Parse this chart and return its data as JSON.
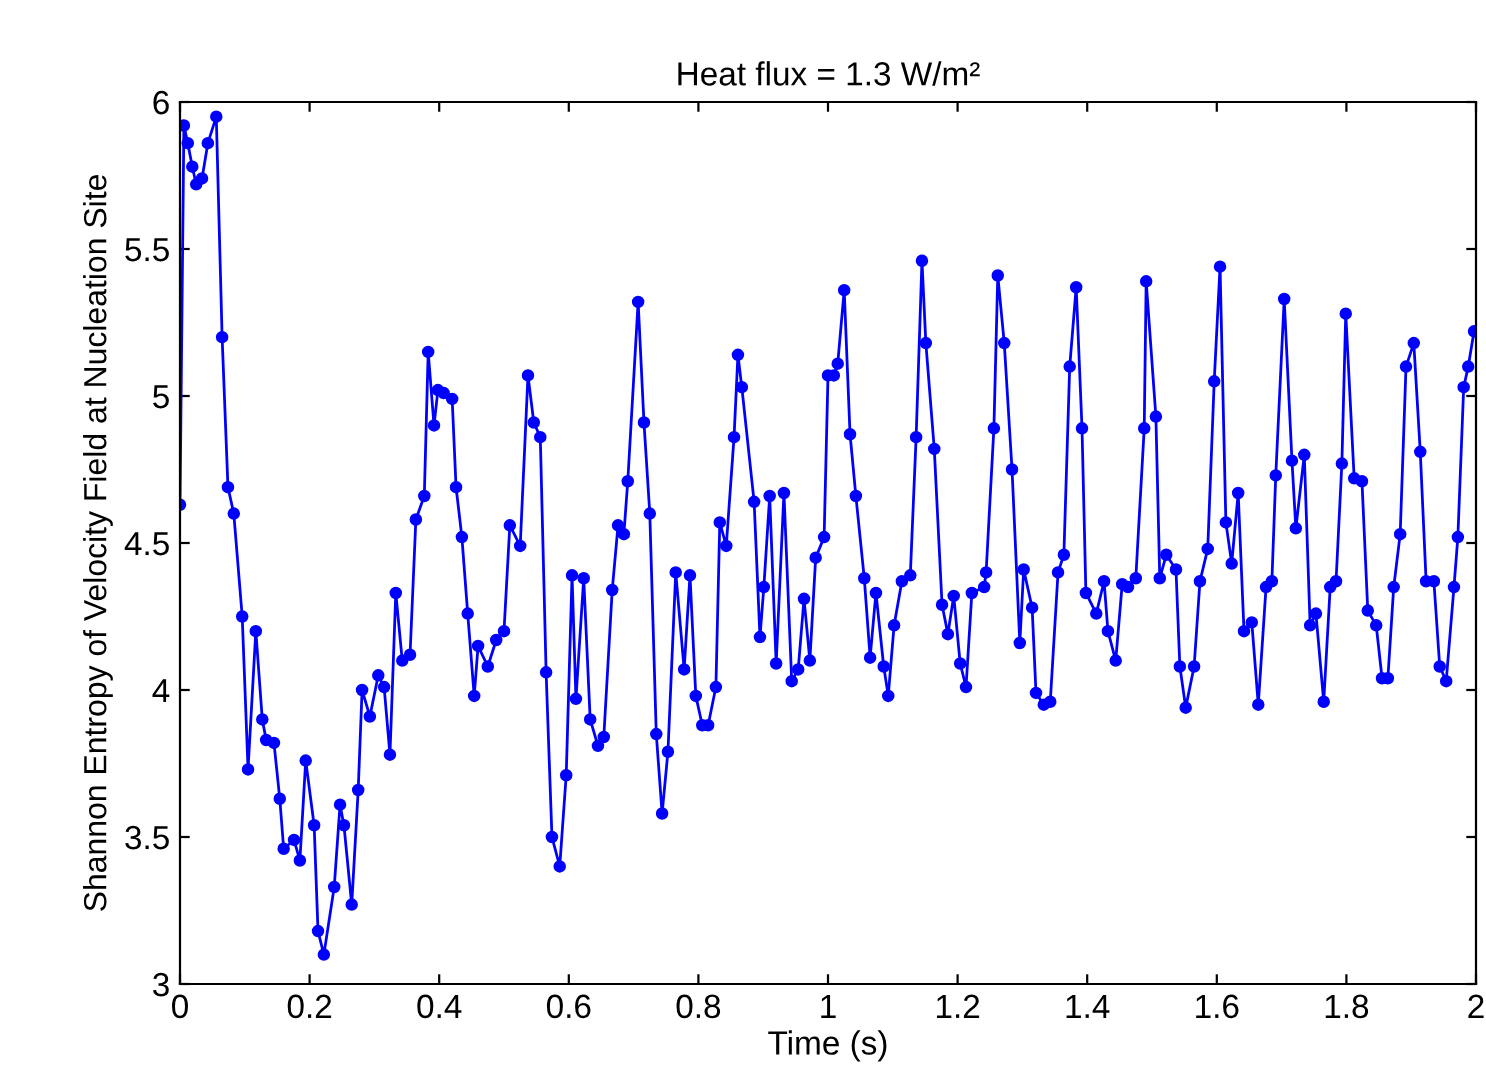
{
  "chart_data": {
    "type": "line",
    "title": "Heat flux = 1.3 W/m²",
    "xlabel": "Time (s)",
    "ylabel": "Shannon Entropy of Velocity Field at Nucleation Site",
    "xlim": [
      0,
      2
    ],
    "ylim": [
      3,
      6
    ],
    "xticks": [
      0,
      0.2,
      0.4,
      0.6,
      0.8,
      1,
      1.2,
      1.4,
      1.6,
      1.8,
      2
    ],
    "yticks": [
      3,
      3.5,
      4,
      4.5,
      5,
      5.5,
      6
    ],
    "grid": false,
    "legend": false,
    "marker": "circle",
    "line_style": "solid",
    "series": [
      {
        "color": "#0000ff",
        "x": [
          0,
          0.006,
          0.012,
          0.019,
          0.025,
          0.034,
          0.043,
          0.056,
          0.065,
          0.074,
          0.083,
          0.096,
          0.105,
          0.117,
          0.127,
          0.133,
          0.145,
          0.154,
          0.16,
          0.176,
          0.185,
          0.194,
          0.207,
          0.213,
          0.222,
          0.238,
          0.247,
          0.253,
          0.265,
          0.275,
          0.281,
          0.293,
          0.306,
          0.315,
          0.324,
          0.333,
          0.343,
          0.355,
          0.364,
          0.377,
          0.383,
          0.392,
          0.398,
          0.407,
          0.42,
          0.426,
          0.435,
          0.444,
          0.454,
          0.46,
          0.475,
          0.488,
          0.5,
          0.509,
          0.525,
          0.537,
          0.546,
          0.556,
          0.565,
          0.574,
          0.586,
          0.596,
          0.605,
          0.611,
          0.623,
          0.633,
          0.645,
          0.654,
          0.667,
          0.676,
          0.685,
          0.691,
          0.707,
          0.716,
          0.725,
          0.735,
          0.744,
          0.753,
          0.765,
          0.778,
          0.787,
          0.796,
          0.806,
          0.815,
          0.827,
          0.833,
          0.843,
          0.855,
          0.861,
          0.867,
          0.886,
          0.895,
          0.901,
          0.91,
          0.92,
          0.932,
          0.944,
          0.954,
          0.963,
          0.972,
          0.981,
          0.994,
          1.0,
          1.009,
          1.015,
          1.025,
          1.034,
          1.043,
          1.056,
          1.065,
          1.074,
          1.086,
          1.093,
          1.102,
          1.114,
          1.127,
          1.136,
          1.145,
          1.151,
          1.164,
          1.176,
          1.185,
          1.194,
          1.204,
          1.213,
          1.222,
          1.241,
          1.244,
          1.256,
          1.262,
          1.272,
          1.284,
          1.296,
          1.302,
          1.315,
          1.321,
          1.333,
          1.343,
          1.355,
          1.364,
          1.373,
          1.383,
          1.392,
          1.398,
          1.414,
          1.426,
          1.432,
          1.444,
          1.454,
          1.463,
          1.475,
          1.488,
          1.491,
          1.506,
          1.512,
          1.522,
          1.537,
          1.543,
          1.552,
          1.565,
          1.574,
          1.586,
          1.596,
          1.605,
          1.614,
          1.623,
          1.633,
          1.642,
          1.654,
          1.664,
          1.676,
          1.685,
          1.691,
          1.704,
          1.716,
          1.722,
          1.735,
          1.744,
          1.753,
          1.765,
          1.775,
          1.784,
          1.793,
          1.799,
          1.812,
          1.824,
          1.833,
          1.846,
          1.855,
          1.864,
          1.873,
          1.883,
          1.892,
          1.904,
          1.914,
          1.923,
          1.935,
          1.944,
          1.954,
          1.966,
          1.972,
          1.981,
          1.988,
          1.997
        ],
        "values": [
          4.63,
          5.92,
          5.86,
          5.78,
          5.72,
          5.74,
          5.86,
          5.95,
          5.2,
          4.69,
          4.6,
          4.25,
          3.73,
          4.2,
          3.9,
          3.83,
          3.82,
          3.63,
          3.46,
          3.49,
          3.42,
          3.76,
          3.54,
          3.18,
          3.1,
          3.33,
          3.61,
          3.54,
          3.27,
          3.66,
          4.0,
          3.91,
          4.05,
          4.01,
          3.78,
          4.33,
          4.1,
          4.12,
          4.58,
          4.66,
          5.15,
          4.9,
          5.02,
          5.01,
          4.99,
          4.69,
          4.52,
          4.26,
          3.98,
          4.15,
          4.08,
          4.17,
          4.2,
          4.56,
          4.49,
          5.07,
          4.91,
          4.86,
          4.06,
          3.5,
          3.4,
          3.71,
          4.39,
          3.97,
          4.38,
          3.9,
          3.81,
          3.84,
          4.34,
          4.56,
          4.53,
          4.71,
          5.32,
          4.91,
          4.6,
          3.85,
          3.58,
          3.79,
          4.4,
          4.07,
          4.39,
          3.98,
          3.88,
          3.88,
          4.01,
          4.57,
          4.49,
          4.86,
          5.14,
          5.03,
          4.64,
          4.18,
          4.35,
          4.66,
          4.09,
          4.67,
          4.03,
          4.07,
          4.31,
          4.1,
          4.45,
          4.52,
          5.07,
          5.07,
          5.11,
          5.36,
          4.87,
          4.66,
          4.38,
          4.11,
          4.33,
          4.08,
          3.98,
          4.22,
          4.37,
          4.39,
          4.86,
          5.46,
          5.18,
          4.82,
          4.29,
          4.19,
          4.32,
          4.09,
          4.01,
          4.33,
          4.35,
          4.4,
          4.89,
          5.41,
          5.18,
          4.75,
          4.16,
          4.41,
          4.28,
          3.99,
          3.95,
          3.96,
          4.4,
          4.46,
          5.1,
          5.37,
          4.89,
          4.33,
          4.26,
          4.37,
          4.2,
          4.1,
          4.36,
          4.35,
          4.38,
          4.89,
          5.39,
          4.93,
          4.38,
          4.46,
          4.41,
          4.08,
          3.94,
          4.08,
          4.37,
          4.48,
          5.05,
          5.44,
          4.57,
          4.43,
          4.67,
          4.2,
          4.23,
          3.95,
          4.35,
          4.37,
          4.73,
          5.33,
          4.78,
          4.55,
          4.8,
          4.22,
          4.26,
          3.96,
          4.35,
          4.37,
          4.77,
          5.28,
          4.72,
          4.71,
          4.27,
          4.22,
          4.04,
          4.04,
          4.35,
          4.53,
          5.1,
          5.18,
          4.81,
          4.37,
          4.37,
          4.08,
          4.03,
          4.35,
          4.52,
          5.03,
          5.1,
          5.22
        ]
      }
    ]
  }
}
